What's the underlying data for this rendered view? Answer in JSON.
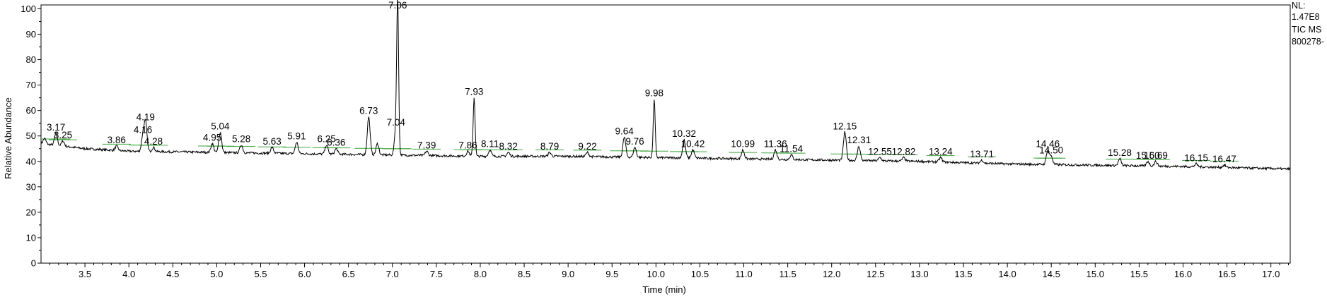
{
  "side_panel": {
    "nl_label": "NL:",
    "nl_value": "1.47E8",
    "scan_label": "TIC  MS",
    "file_id": "800278-"
  },
  "chart_data": {
    "type": "line",
    "xlabel": "Time (min)",
    "ylabel": "Relative Abundance",
    "xlim": [
      3.0,
      17.22
    ],
    "ylim": [
      0,
      101.5
    ],
    "xticks": [
      3.5,
      4.0,
      4.5,
      5.0,
      5.5,
      6.0,
      6.5,
      7.0,
      7.5,
      8.0,
      8.5,
      9.0,
      9.5,
      10.0,
      10.5,
      11.0,
      11.5,
      12.0,
      12.5,
      13.0,
      13.5,
      14.0,
      14.5,
      15.0,
      15.5,
      16.0,
      16.5,
      17.0
    ],
    "yticks": [
      0,
      10,
      20,
      30,
      40,
      50,
      60,
      70,
      80,
      90,
      100
    ],
    "grid": false,
    "line_color": "#000000",
    "integration_color": "#3aa63a",
    "baseline": [
      [
        3.0,
        47
      ],
      [
        3.5,
        45
      ],
      [
        4.0,
        44
      ],
      [
        5.0,
        43.5
      ],
      [
        6.0,
        43
      ],
      [
        7.0,
        42.5
      ],
      [
        8.0,
        42
      ],
      [
        9.0,
        42
      ],
      [
        10.0,
        41.5
      ],
      [
        11.0,
        41
      ],
      [
        12.0,
        40.5
      ],
      [
        13.0,
        40
      ],
      [
        14.0,
        39
      ],
      [
        15.0,
        38.5
      ],
      [
        16.0,
        38
      ],
      [
        17.22,
        37
      ]
    ],
    "peaks": [
      {
        "rt": 3.04,
        "height": 49,
        "label": ""
      },
      {
        "rt": 3.17,
        "height": 51,
        "label": "3.17"
      },
      {
        "rt": 3.25,
        "height": 48,
        "label": "3.25"
      },
      {
        "rt": 3.86,
        "height": 46,
        "label": "3.86"
      },
      {
        "rt": 4.16,
        "height": 50,
        "label": "4.16"
      },
      {
        "rt": 4.19,
        "height": 55,
        "label": "4.19"
      },
      {
        "rt": 4.28,
        "height": 45.5,
        "label": "4.28"
      },
      {
        "rt": 4.95,
        "height": 47,
        "label": "4.95"
      },
      {
        "rt": 5.04,
        "height": 51.5,
        "label": "5.04"
      },
      {
        "rt": 5.28,
        "height": 46.5,
        "label": "5.28"
      },
      {
        "rt": 5.63,
        "height": 45.5,
        "label": "5.63"
      },
      {
        "rt": 5.91,
        "height": 47.5,
        "label": "5.91"
      },
      {
        "rt": 6.25,
        "height": 46.5,
        "label": "6.25"
      },
      {
        "rt": 6.36,
        "height": 45,
        "label": "6.36"
      },
      {
        "rt": 6.73,
        "height": 57.5,
        "label": "6.73"
      },
      {
        "rt": 6.83,
        "height": 47,
        "label": ""
      },
      {
        "rt": 7.04,
        "height": 53,
        "label": "7.04"
      },
      {
        "rt": 7.06,
        "height": 100,
        "label": "7.06"
      },
      {
        "rt": 7.39,
        "height": 44,
        "label": "7.39"
      },
      {
        "rt": 7.86,
        "height": 44,
        "label": "7.86"
      },
      {
        "rt": 7.93,
        "height": 65,
        "label": "7.93"
      },
      {
        "rt": 8.11,
        "height": 44.5,
        "label": "8.11"
      },
      {
        "rt": 8.32,
        "height": 43.5,
        "label": "8.32"
      },
      {
        "rt": 8.79,
        "height": 43.5,
        "label": "8.79"
      },
      {
        "rt": 9.22,
        "height": 43.5,
        "label": "9.22"
      },
      {
        "rt": 9.64,
        "height": 49.5,
        "label": "9.64"
      },
      {
        "rt": 9.76,
        "height": 45.5,
        "label": "9.76"
      },
      {
        "rt": 9.98,
        "height": 64.5,
        "label": "9.98"
      },
      {
        "rt": 10.32,
        "height": 48.5,
        "label": "10.32"
      },
      {
        "rt": 10.42,
        "height": 44.5,
        "label": "10.42"
      },
      {
        "rt": 10.99,
        "height": 44.5,
        "label": "10.99"
      },
      {
        "rt": 11.36,
        "height": 44.5,
        "label": "11.36"
      },
      {
        "rt": 11.54,
        "height": 42.5,
        "label": "11.54"
      },
      {
        "rt": 12.15,
        "height": 51.5,
        "label": "12.15"
      },
      {
        "rt": 12.31,
        "height": 46,
        "label": "12.31"
      },
      {
        "rt": 12.55,
        "height": 41.5,
        "label": "12.55"
      },
      {
        "rt": 12.82,
        "height": 41.5,
        "label": "12.82"
      },
      {
        "rt": 13.24,
        "height": 41.5,
        "label": "13.24"
      },
      {
        "rt": 13.71,
        "height": 40.5,
        "label": "13.71"
      },
      {
        "rt": 14.46,
        "height": 44.5,
        "label": "14.46"
      },
      {
        "rt": 14.5,
        "height": 42,
        "label": "14.50"
      },
      {
        "rt": 15.28,
        "height": 41,
        "label": "15.28"
      },
      {
        "rt": 15.6,
        "height": 40,
        "label": "15.60"
      },
      {
        "rt": 15.69,
        "height": 40,
        "label": "15.69"
      },
      {
        "rt": 16.15,
        "height": 39,
        "label": "16.15"
      },
      {
        "rt": 16.47,
        "height": 38.5,
        "label": "16.47"
      }
    ]
  }
}
